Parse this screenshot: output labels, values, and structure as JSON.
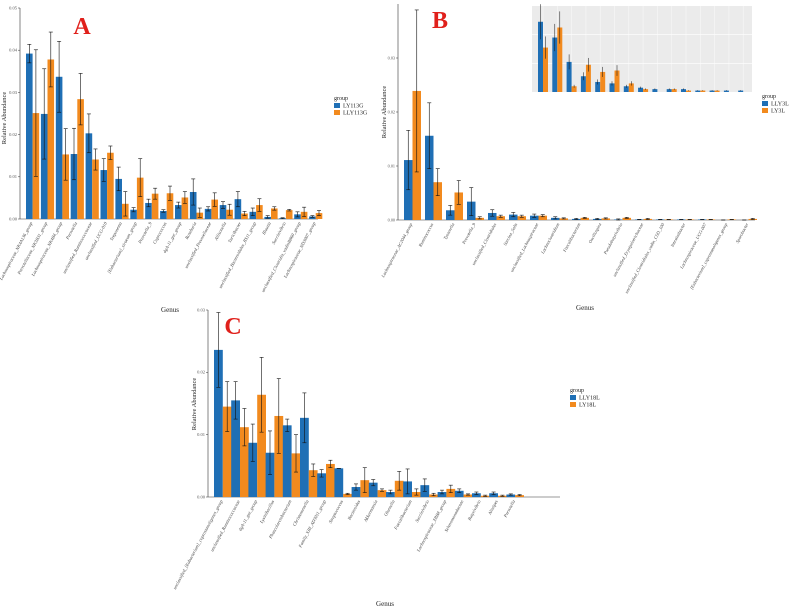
{
  "colors": {
    "series1": "#1f6fb5",
    "series2": "#f28a1e",
    "panel_letter": "#e0201b",
    "inset_bg": "#ebebeb",
    "grid": "#ffffff"
  },
  "chart_data": [
    {
      "id": "A",
      "panel_label": "A",
      "type": "bar",
      "xlabel": "Genus",
      "ylabel": "Relative Abundance",
      "ylim": [
        0,
        0.05
      ],
      "y_ticks": [
        0.0,
        0.01,
        0.02,
        0.03,
        0.04,
        0.05
      ],
      "y_tick_labels": [
        "0.00",
        "0.01",
        "0.02",
        "0.03",
        "0.04",
        "0.05"
      ],
      "legend": {
        "title": "group",
        "position": "right"
      },
      "categories": [
        "Lachnospiraceae_NK4A136_group",
        "Prevotellaceae_NK3B31_group",
        "Lachnospiraceae_NK4B4_group",
        "Prevotella",
        "unclassified_Ruminococcaceae",
        "unclassified_UCG-010",
        "Treponema",
        "[Eubacterium]_siraeum_group",
        "Prevotella_9",
        "Coprococcus",
        "dgA-11_gut_group",
        "Roseburia",
        "unclassified_Prevotellaceae",
        "Allisonella",
        "Turicibacter",
        "unclassified_Bacteroidales_BS11_group",
        "Blautia",
        "Succinivibrio",
        "unclassified_Clostridia_vadinBB60_group",
        "Lachnospiraceae_ND3007_group"
      ],
      "series": [
        {
          "name": "LY113G",
          "values": [
            0.0392,
            0.0249,
            0.0337,
            0.0154,
            0.0203,
            0.0116,
            0.0095,
            0.0022,
            0.0038,
            0.0019,
            0.0033,
            0.0064,
            0.0024,
            0.0033,
            0.0047,
            0.0017,
            0.0005,
            0.0002,
            0.0011,
            0.0006
          ],
          "errors": [
            0.0022,
            0.0107,
            0.0084,
            0.0061,
            0.0046,
            0.0027,
            0.0028,
            0.0005,
            0.0009,
            0.0003,
            0.0007,
            0.0031,
            0.0005,
            0.0008,
            0.0018,
            0.0009,
            0.0003,
            0.0001,
            0.0006,
            0.0002
          ]
        },
        {
          "name": "LLY113G",
          "values": [
            0.0251,
            0.0378,
            0.0153,
            0.0284,
            0.0141,
            0.0157,
            0.0036,
            0.0098,
            0.006,
            0.0061,
            0.0051,
            0.0015,
            0.0046,
            0.0022,
            0.0013,
            0.0033,
            0.0025,
            0.0021,
            0.0017,
            0.0014
          ],
          "errors": [
            0.015,
            0.0065,
            0.0061,
            0.0061,
            0.0025,
            0.0016,
            0.0029,
            0.0045,
            0.0013,
            0.0017,
            0.0014,
            0.0011,
            0.0016,
            0.0013,
            0.0005,
            0.0015,
            0.0004,
            0.0002,
            0.0011,
            0.0006
          ]
        }
      ]
    },
    {
      "id": "B",
      "panel_label": "B",
      "type": "bar",
      "xlabel": "Genus",
      "ylabel": "Relative Abundance",
      "ylim": [
        0,
        0.04
      ],
      "y_ticks": [
        0.0,
        0.01,
        0.02,
        0.03
      ],
      "y_tick_labels": [
        "0.00",
        "0.01",
        "0.02",
        "0.03"
      ],
      "legend": {
        "title": "group",
        "position": "right"
      },
      "categories": [
        "Lachnospiraceae_AC2044_group",
        "Ruminococcus",
        "Tyzzerella",
        "Prevotella_9",
        "unclassified_Clostridiales",
        "Sarcina_Salts",
        "unclassified_Lachnospiraceae",
        "Lachnoclostridium",
        "Faecalibacterium",
        "Oscillospira",
        "Pseudobutyrivibrio",
        "unclassified_Erysipelotrichaceae",
        "unclassified_Clostridiales_vadin_CSD_100",
        "Intestinibacter",
        "Lachnospiraceae_UCG-007",
        "[Eubacterium]_coprostanoligenes_group",
        "Sporobacter"
      ],
      "series": [
        {
          "name": "LLY3L",
          "values": [
            0.0111,
            0.0156,
            0.0018,
            0.0034,
            0.0013,
            0.001,
            0.0008,
            0.0004,
            0.0002,
            0.0002,
            0.0001,
            0.0001,
            0.0001,
            0.0001,
            0.0001,
            0.0,
            0.0
          ],
          "errors": [
            0.0055,
            0.0061,
            0.0009,
            0.0026,
            0.0006,
            0.0004,
            0.0003,
            0.0002,
            0.0001,
            0.0001,
            0.0001,
            0.0,
            0.0,
            0.0,
            0.0,
            0.0,
            0.0
          ]
        },
        {
          "name": "LY3L",
          "values": [
            0.0239,
            0.007,
            0.0051,
            0.0004,
            0.0007,
            0.0007,
            0.0008,
            0.0003,
            0.0004,
            0.0003,
            0.0004,
            0.0002,
            0.0001,
            0.0001,
            0.0001,
            0.0001,
            0.0002
          ],
          "errors": [
            0.015,
            0.0025,
            0.0022,
            0.0002,
            0.0002,
            0.0002,
            0.0002,
            0.0001,
            0.0001,
            0.0001,
            0.0001,
            0.0001,
            0.0,
            0.0,
            0.0,
            0.0,
            0.0001
          ]
        }
      ],
      "inset": {
        "grid": true,
        "legend": {
          "title": "group",
          "position": "right"
        },
        "series1_values": [
          0.049,
          0.038,
          0.021,
          0.011,
          0.007,
          0.006,
          0.004,
          0.003,
          0.002,
          0.002,
          0.002,
          0.001,
          0.001,
          0.001,
          0.001
        ],
        "series2_values": [
          0.031,
          0.045,
          0.004,
          0.019,
          0.014,
          0.015,
          0.006,
          0.002,
          0.0,
          0.002,
          0.001,
          0.001,
          0.001,
          0.0,
          0.0
        ],
        "ylim": [
          0,
          0.06
        ]
      }
    },
    {
      "id": "C",
      "panel_label": "C",
      "type": "bar",
      "xlabel": "Genus",
      "ylabel": "Relative Abundance",
      "ylim": [
        0,
        0.03
      ],
      "y_ticks": [
        0.0,
        0.01,
        0.02,
        0.03
      ],
      "y_tick_labels": [
        "0.00",
        "0.01",
        "0.02",
        "0.03"
      ],
      "legend": {
        "title": "group",
        "position": "right"
      },
      "categories": [
        "unclassified_[Eubacterium]_coprostanoligenes_group",
        "unclassified_Ruminococcaceae",
        "dgA-11_gut_group",
        "Lysinibacillus",
        "Phascolarctobacterium",
        "Christensenella",
        "Family_XIII_AD3011_group",
        "Streptococcus",
        "Bacteroides",
        "Akkermansia",
        "Olsenella",
        "Faecalibacterium",
        "Succinivibrio",
        "Lachnospiraceae_XBB8_group",
        "Selenomonadaceae",
        "Butyrivibrio",
        "Alistipes",
        "Prevotella"
      ],
      "series": [
        {
          "name": "LLY18L",
          "values": [
            0.0236,
            0.0155,
            0.0087,
            0.0071,
            0.0115,
            0.0127,
            0.0038,
            0.0046,
            0.0016,
            0.0023,
            0.0008,
            0.0025,
            0.0019,
            0.0008,
            0.001,
            0.0006,
            0.0006,
            0.0004
          ],
          "errors": [
            0.006,
            0.003,
            0.003,
            0.0035,
            0.001,
            0.004,
            0.0006,
            0.0,
            0.0005,
            0.0005,
            0.0003,
            0.002,
            0.001,
            0.0003,
            0.0003,
            0.0002,
            0.0002,
            0.0001
          ]
        },
        {
          "name": "LY18L",
          "values": [
            0.0145,
            0.0112,
            0.0164,
            0.013,
            0.007,
            0.0043,
            0.0053,
            0.0005,
            0.0027,
            0.0011,
            0.0026,
            0.0008,
            0.0004,
            0.0013,
            0.0004,
            0.0002,
            0.0002,
            0.0003
          ],
          "errors": [
            0.004,
            0.003,
            0.006,
            0.006,
            0.003,
            0.001,
            0.0006,
            0.0001,
            0.002,
            0.0002,
            0.0015,
            0.0005,
            0.0002,
            0.0006,
            0.0001,
            0.0001,
            0.0001,
            0.0001
          ]
        }
      ]
    }
  ]
}
